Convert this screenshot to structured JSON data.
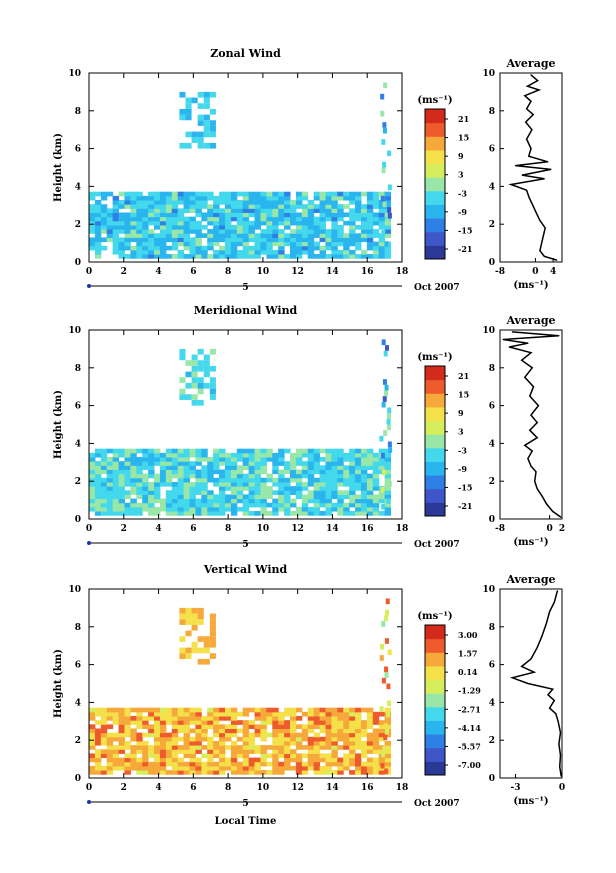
{
  "figure": {
    "month_label": "Oct 2007",
    "day_label": "5",
    "xlabel_bottom": "Local Time"
  },
  "chart_data": [
    {
      "type": "heatmap",
      "title": "Zonal Wind",
      "ylabel": "Height (km)",
      "xlim": [
        0,
        18
      ],
      "ylim": [
        0,
        10
      ],
      "x_ticks": [
        "0",
        "2",
        "4",
        "6",
        "8",
        "10",
        "12",
        "14",
        "16",
        "18"
      ],
      "y_ticks": [
        "0",
        "2",
        "4",
        "6",
        "8",
        "10"
      ],
      "colorbar": {
        "unit": "(ms⁻¹)",
        "levels": [
          "21",
          "15",
          "9",
          "3",
          "-3",
          "-9",
          "-15",
          "-21"
        ],
        "range": [
          -24,
          24
        ]
      },
      "dominant_band_value": -6,
      "profile": {
        "title": "Average",
        "xlabel": "(ms⁻¹)",
        "xlim": [
          -8,
          6
        ],
        "x_ticks": [
          "-8",
          "0",
          "4"
        ],
        "y_ticks": [
          "0",
          "2",
          "4",
          "6",
          "8",
          "10"
        ],
        "points": [
          {
            "x": 4.8,
            "y": 0.1
          },
          {
            "x": 2.0,
            "y": 0.3
          },
          {
            "x": 1.0,
            "y": 0.6
          },
          {
            "x": 1.6,
            "y": 1.2
          },
          {
            "x": 2.2,
            "y": 1.8
          },
          {
            "x": 1.0,
            "y": 2.2
          },
          {
            "x": 0.2,
            "y": 2.6
          },
          {
            "x": -0.6,
            "y": 3.0
          },
          {
            "x": -1.4,
            "y": 3.4
          },
          {
            "x": -2.0,
            "y": 3.8
          },
          {
            "x": -5.5,
            "y": 4.1
          },
          {
            "x": 2.0,
            "y": 4.4
          },
          {
            "x": -3.0,
            "y": 4.6
          },
          {
            "x": 3.5,
            "y": 4.9
          },
          {
            "x": -4.5,
            "y": 5.1
          },
          {
            "x": 2.8,
            "y": 5.3
          },
          {
            "x": -1.5,
            "y": 5.6
          },
          {
            "x": -1.0,
            "y": 6.0
          },
          {
            "x": -2.0,
            "y": 6.5
          },
          {
            "x": -0.8,
            "y": 7.0
          },
          {
            "x": -2.2,
            "y": 7.4
          },
          {
            "x": -0.5,
            "y": 7.8
          },
          {
            "x": -2.0,
            "y": 8.1
          },
          {
            "x": -1.0,
            "y": 8.5
          },
          {
            "x": -2.4,
            "y": 8.8
          },
          {
            "x": 0.8,
            "y": 9.1
          },
          {
            "x": -1.8,
            "y": 9.3
          },
          {
            "x": 0.5,
            "y": 9.6
          },
          {
            "x": -1.0,
            "y": 9.9
          }
        ]
      }
    },
    {
      "type": "heatmap",
      "title": "Meridional Wind",
      "ylabel": "Height (km)",
      "xlim": [
        0,
        18
      ],
      "ylim": [
        0,
        10
      ],
      "x_ticks": [
        "0",
        "2",
        "4",
        "6",
        "8",
        "10",
        "12",
        "14",
        "16",
        "18"
      ],
      "y_ticks": [
        "0",
        "2",
        "4",
        "6",
        "8",
        "10"
      ],
      "colorbar": {
        "unit": "(ms⁻¹)",
        "levels": [
          "21",
          "15",
          "9",
          "3",
          "-3",
          "-9",
          "-15",
          "-21"
        ],
        "range": [
          -24,
          24
        ]
      },
      "dominant_band_value": -4,
      "profile": {
        "title": "Average",
        "xlabel": "(ms⁻¹)",
        "xlim": [
          -8,
          2
        ],
        "x_ticks": [
          "-8",
          "0",
          "2"
        ],
        "y_ticks": [
          "0",
          "2",
          "4",
          "6",
          "8",
          "10"
        ],
        "points": [
          {
            "x": 1.8,
            "y": 0.1
          },
          {
            "x": 0.5,
            "y": 0.4
          },
          {
            "x": -0.5,
            "y": 0.8
          },
          {
            "x": -1.2,
            "y": 1.2
          },
          {
            "x": -2.0,
            "y": 1.6
          },
          {
            "x": -2.4,
            "y": 2.0
          },
          {
            "x": -2.2,
            "y": 2.5
          },
          {
            "x": -3.0,
            "y": 2.8
          },
          {
            "x": -3.5,
            "y": 3.2
          },
          {
            "x": -2.8,
            "y": 3.6
          },
          {
            "x": -4.0,
            "y": 3.9
          },
          {
            "x": -2.0,
            "y": 4.3
          },
          {
            "x": -3.2,
            "y": 4.7
          },
          {
            "x": -2.0,
            "y": 5.1
          },
          {
            "x": -3.0,
            "y": 5.5
          },
          {
            "x": -1.8,
            "y": 6.0
          },
          {
            "x": -3.2,
            "y": 6.5
          },
          {
            "x": -2.6,
            "y": 7.0
          },
          {
            "x": -4.0,
            "y": 7.5
          },
          {
            "x": -2.8,
            "y": 8.0
          },
          {
            "x": -4.5,
            "y": 8.4
          },
          {
            "x": -3.0,
            "y": 8.8
          },
          {
            "x": -6.5,
            "y": 9.1
          },
          {
            "x": -3.5,
            "y": 9.3
          },
          {
            "x": -7.5,
            "y": 9.5
          },
          {
            "x": 1.5,
            "y": 9.7
          },
          {
            "x": -6.0,
            "y": 9.9
          }
        ]
      }
    },
    {
      "type": "heatmap",
      "title": "Vertical Wind",
      "ylabel": "Height (km)",
      "xlabel": "Local Time",
      "xlim": [
        0,
        18
      ],
      "ylim": [
        0,
        10
      ],
      "x_ticks": [
        "0",
        "2",
        "4",
        "6",
        "8",
        "10",
        "12",
        "14",
        "16",
        "18"
      ],
      "y_ticks": [
        "0",
        "2",
        "4",
        "6",
        "8",
        "10"
      ],
      "colorbar": {
        "unit": "(ms⁻¹)",
        "levels": [
          "3.00",
          "1.57",
          "0.14",
          "-1.29",
          "-2.71",
          "-4.14",
          "-5.57",
          "-7.00"
        ],
        "range": [
          -8,
          4
        ]
      },
      "dominant_band_value": 0.9,
      "profile": {
        "title": "Average",
        "xlabel": "(ms⁻¹)",
        "xlim": [
          -4,
          0
        ],
        "x_ticks": [
          "-3",
          "0"
        ],
        "y_ticks": [
          "0",
          "2",
          "4",
          "6",
          "8",
          "10"
        ],
        "points": [
          {
            "x": -0.05,
            "y": 0.1
          },
          {
            "x": -0.15,
            "y": 0.6
          },
          {
            "x": -0.1,
            "y": 1.2
          },
          {
            "x": -0.2,
            "y": 1.8
          },
          {
            "x": -0.1,
            "y": 2.4
          },
          {
            "x": -0.25,
            "y": 3.0
          },
          {
            "x": -0.4,
            "y": 3.4
          },
          {
            "x": -0.8,
            "y": 3.7
          },
          {
            "x": -0.5,
            "y": 4.1
          },
          {
            "x": -0.9,
            "y": 4.4
          },
          {
            "x": -0.6,
            "y": 4.7
          },
          {
            "x": -2.2,
            "y": 5.0
          },
          {
            "x": -3.2,
            "y": 5.3
          },
          {
            "x": -1.8,
            "y": 5.6
          },
          {
            "x": -2.6,
            "y": 5.9
          },
          {
            "x": -2.0,
            "y": 6.3
          },
          {
            "x": -1.6,
            "y": 6.9
          },
          {
            "x": -1.3,
            "y": 7.5
          },
          {
            "x": -1.0,
            "y": 8.2
          },
          {
            "x": -0.8,
            "y": 8.8
          },
          {
            "x": -0.5,
            "y": 9.3
          },
          {
            "x": -0.3,
            "y": 9.9
          }
        ]
      }
    }
  ]
}
